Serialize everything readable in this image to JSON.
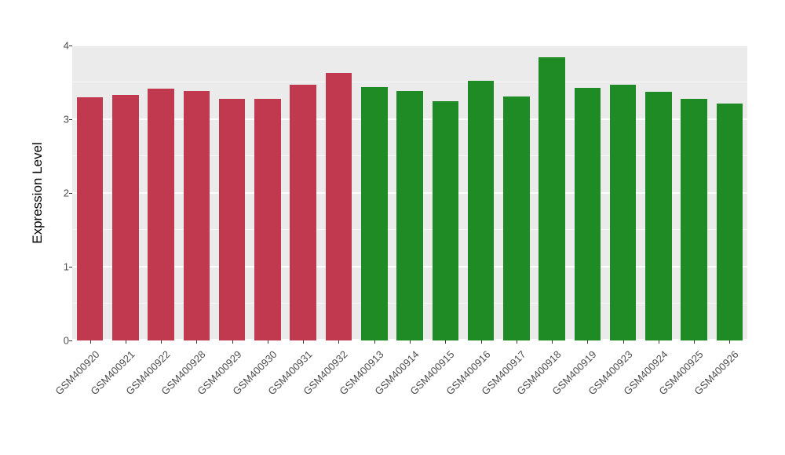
{
  "figure": {
    "ylabel": "Expression Level"
  },
  "chart_data": {
    "type": "bar",
    "title": "",
    "xlabel": "",
    "ylabel": "Expression Level",
    "categories": [
      "GSM400920",
      "GSM400921",
      "GSM400922",
      "GSM400928",
      "GSM400929",
      "GSM400930",
      "GSM400931",
      "GSM400932",
      "GSM400913",
      "GSM400914",
      "GSM400915",
      "GSM400916",
      "GSM400917",
      "GSM400918",
      "GSM400919",
      "GSM400923",
      "GSM400924",
      "GSM400925",
      "GSM400926"
    ],
    "values": [
      3.3,
      3.33,
      3.41,
      3.38,
      3.28,
      3.28,
      3.47,
      3.63,
      3.44,
      3.38,
      3.25,
      3.52,
      3.31,
      3.84,
      3.43,
      3.47,
      3.37,
      3.28,
      3.21
    ],
    "bar_colors": [
      "#C0394F",
      "#C0394F",
      "#C0394F",
      "#C0394F",
      "#C0394F",
      "#C0394F",
      "#C0394F",
      "#C0394F",
      "#1F8B24",
      "#1F8B24",
      "#1F8B24",
      "#1F8B24",
      "#1F8B24",
      "#1F8B24",
      "#1F8B24",
      "#1F8B24",
      "#1F8B24",
      "#1F8B24",
      "#1F8B24"
    ],
    "group_colors": {
      "red_group": "#C0394F",
      "green_group": "#1F8B24"
    },
    "ylim": [
      0,
      4
    ],
    "yticks": [
      0,
      1,
      2,
      3,
      4
    ],
    "minor_yticks": [
      0.5,
      1.5,
      2.5,
      3.5
    ],
    "grid": true,
    "panel_background": "#EBEBEB",
    "legend_position": "none"
  }
}
